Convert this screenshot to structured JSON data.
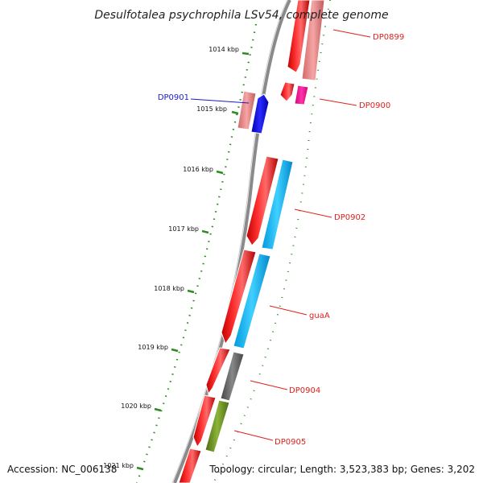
{
  "title": "Desulfotalea psychrophila LSv54, complete genome",
  "footer": {
    "accession": "Accession: NC_006138",
    "summary": "Topology: circular; Length: 3,523,383 bp; Genes: 3,202"
  },
  "ticks": [
    {
      "label": "1014 kbp"
    },
    {
      "label": "1015 kbp"
    },
    {
      "label": "1016 kbp"
    },
    {
      "label": "1017 kbp"
    },
    {
      "label": "1018 kbp"
    },
    {
      "label": "1019 kbp"
    },
    {
      "label": "1020 kbp"
    },
    {
      "label": "1021 kbp"
    }
  ],
  "genes": [
    {
      "label": "DP0899",
      "color": "#e0201c"
    },
    {
      "label": "DP0900",
      "color": "#e0201c"
    },
    {
      "label": "DP0901",
      "color": "#1a1acc"
    },
    {
      "label": "DP0902",
      "color": "#e0201c"
    },
    {
      "label": "guaA",
      "color": "#e0201c"
    },
    {
      "label": "DP0904",
      "color": "#e0201c"
    },
    {
      "label": "DP0905",
      "color": "#e0201c"
    }
  ],
  "colors": {
    "cds": "#ff0000",
    "cds_light": "#f08080",
    "blue_gene": "#0000ee",
    "cyan_track": "#00bfff",
    "magenta_track": "#ff1493",
    "gray_track": "#666666",
    "olive_track": "#6b8e23",
    "backbone": "#888888",
    "dot_ruler": "#228b22"
  }
}
